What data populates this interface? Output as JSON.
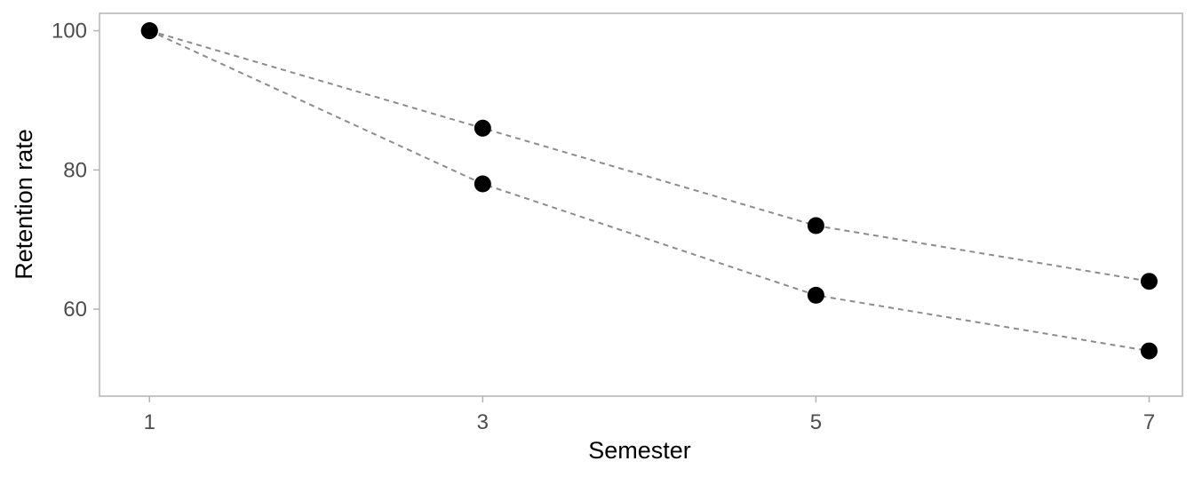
{
  "chart_data": {
    "type": "line",
    "title": "",
    "xlabel": "Semester",
    "ylabel": "Retention rate",
    "x": [
      1,
      3,
      5,
      7
    ],
    "x_ticks": [
      1,
      3,
      5,
      7
    ],
    "y_ticks": [
      60,
      80,
      100
    ],
    "xlim": [
      0.7,
      7.2
    ],
    "ylim": [
      47.5,
      102.5
    ],
    "grid": false,
    "legend": "none",
    "series": [
      {
        "values": [
          100,
          86,
          72,
          64
        ]
      },
      {
        "values": [
          100,
          78,
          62,
          54
        ]
      }
    ],
    "colors": {
      "line": "#8c8c8c",
      "point": "#000000",
      "frame": "#b3b3b3",
      "tick_text": "#4d4d4d"
    }
  }
}
